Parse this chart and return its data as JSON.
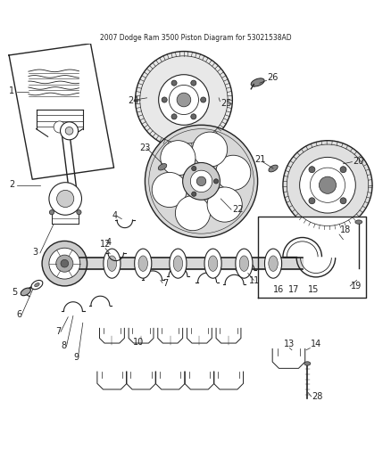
{
  "title": "2007 Dodge Ram 3500 Piston Diagram for 53021538AD",
  "bg_color": "#ffffff",
  "line_color": "#222222",
  "label_fontsize": 7,
  "figsize": [
    4.38,
    5.33
  ],
  "dpi": 100
}
